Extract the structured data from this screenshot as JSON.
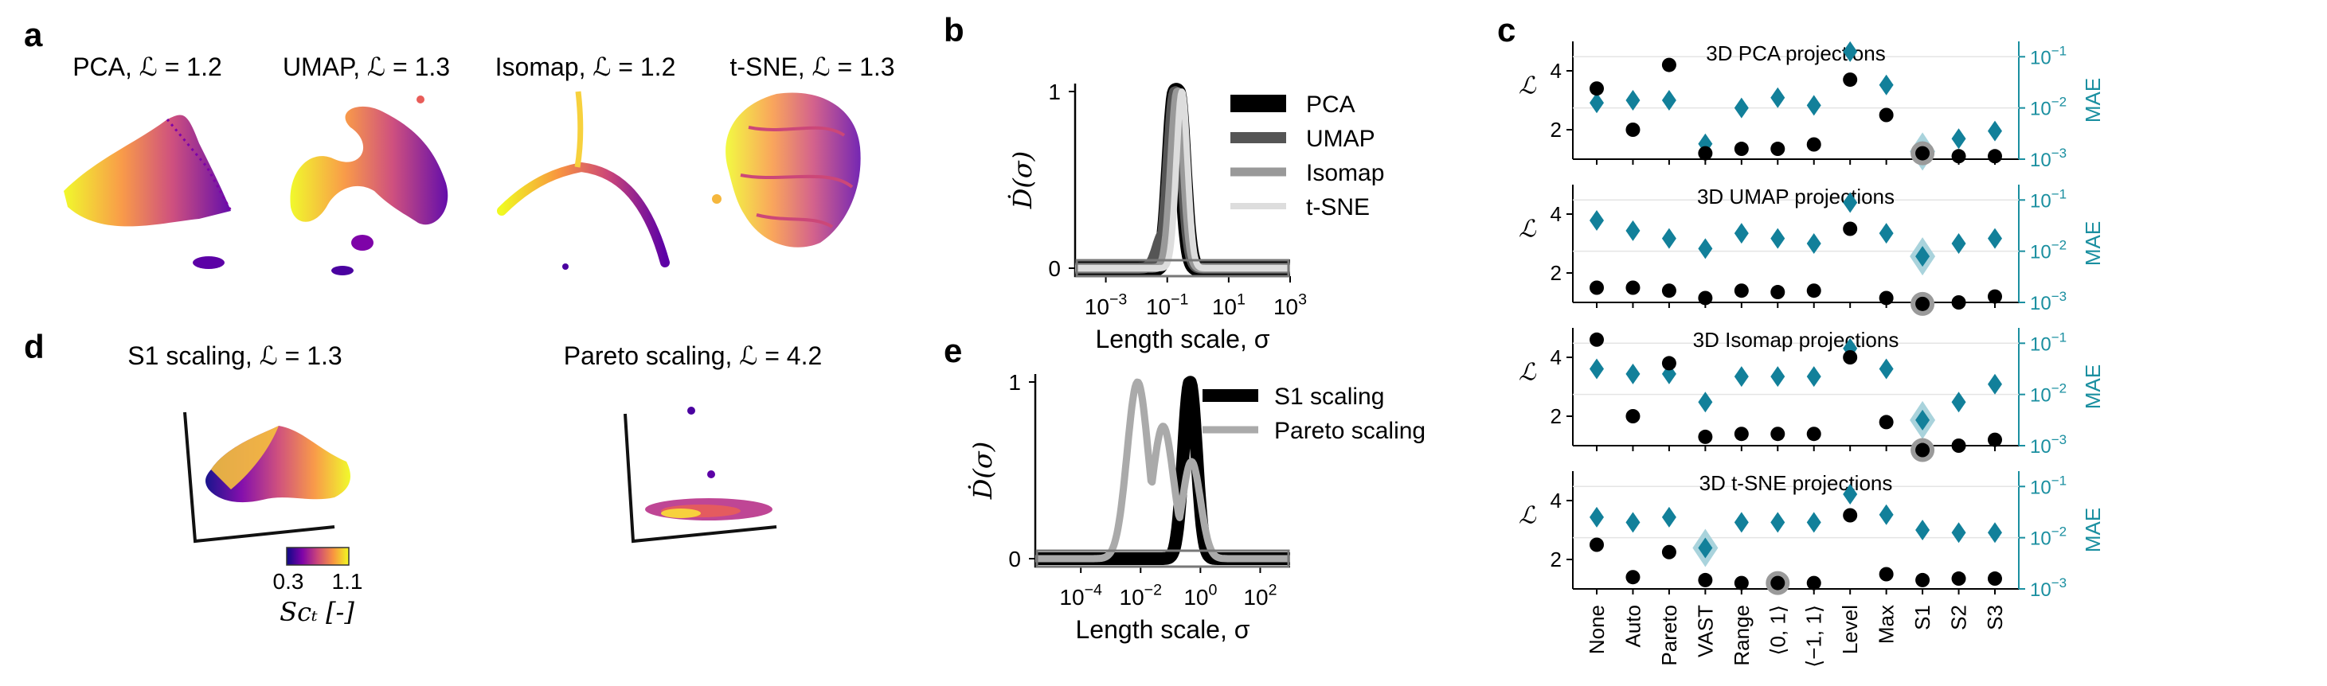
{
  "panels": {
    "a": {
      "label": "a",
      "titles": [
        "PCA, ℒ = 1.2",
        "UMAP, ℒ = 1.3",
        "Isomap, ℒ = 1.2",
        "t-SNE, ℒ = 1.3"
      ]
    },
    "b": {
      "label": "b"
    },
    "c": {
      "label": "c"
    },
    "d": {
      "label": "d",
      "titles": [
        "S1 scaling, ℒ = 1.3",
        "Pareto scaling, ℒ = 4.2"
      ],
      "colorbar": {
        "min": "0.3",
        "max": "1.1",
        "label": "Scₜ [-]"
      }
    },
    "e": {
      "label": "e"
    }
  },
  "chart_data": [
    {
      "id": "b",
      "type": "line",
      "ylabel": "Ḋ(σ)",
      "xlabel": "Length scale, σ",
      "xscale": "log",
      "xlim": [
        0.0001,
        1000
      ],
      "ylim": [
        0,
        1
      ],
      "yticks": [
        "0",
        "1"
      ],
      "xticks": [
        {
          "v": 0.001,
          "base": "10",
          "exp": "−3"
        },
        {
          "v": 0.1,
          "base": "10",
          "exp": "−1"
        },
        {
          "v": 10,
          "base": "10",
          "exp": "1"
        },
        {
          "v": 1000,
          "base": "10",
          "exp": "3"
        }
      ],
      "legend_position": "top-right",
      "series": [
        {
          "name": "PCA",
          "color": "#000000",
          "width": 22,
          "peak": 0.2,
          "sigma": 0.2
        },
        {
          "name": "UMAP",
          "color": "#555555",
          "width": 14,
          "peak": 0.18,
          "sigma": 0.22
        },
        {
          "name": "Isomap",
          "color": "#999999",
          "width": 11,
          "peak": 0.22,
          "sigma": 0.2
        },
        {
          "name": "t-SNE",
          "color": "#dddddd",
          "width": 8,
          "peak": 0.3,
          "sigma": 0.18
        }
      ]
    },
    {
      "id": "e",
      "type": "line",
      "ylabel": "Ḋ(σ)",
      "xlabel": "Length scale, σ",
      "xscale": "log",
      "xlim": [
        3e-06,
        1000
      ],
      "ylim": [
        0,
        1
      ],
      "yticks": [
        "0",
        "1"
      ],
      "xticks": [
        {
          "v": 0.0001,
          "base": "10",
          "exp": "−4"
        },
        {
          "v": 0.01,
          "base": "10",
          "exp": "−2"
        },
        {
          "v": 1,
          "base": "10",
          "exp": "0"
        },
        {
          "v": 100,
          "base": "10",
          "exp": "2"
        }
      ],
      "legend_position": "top-right",
      "series": [
        {
          "name": "S1 scaling",
          "color": "#000000",
          "width": 16
        },
        {
          "name": "Pareto scaling",
          "color": "#aaaaaa",
          "width": 9
        }
      ]
    },
    {
      "id": "c",
      "type": "scatter",
      "categories": [
        "None",
        "Auto",
        "Pareto",
        "VAST",
        "Range",
        "⟨0, 1⟩",
        "⟨−1, 1⟩",
        "Level",
        "Max",
        "S1",
        "S2",
        "S3"
      ],
      "ylabel_left": "ℒ",
      "ylabel_right": "MAE",
      "ylim_left": [
        1,
        5
      ],
      "yticks_left": [
        "2",
        "4"
      ],
      "ylim_right_log": [
        -3,
        -0.7
      ],
      "yticks_right": [
        {
          "v": -1,
          "base": "10",
          "exp": "−1"
        },
        {
          "v": -2,
          "base": "10",
          "exp": "−2"
        },
        {
          "v": -3,
          "base": "10",
          "exp": "−3"
        }
      ],
      "subplots": [
        {
          "title": "3D PCA projections",
          "L": [
            3.4,
            2.0,
            4.2,
            1.2,
            1.35,
            1.35,
            1.5,
            3.7,
            2.5,
            1.2,
            1.1,
            1.1
          ],
          "MAE": [
            -1.9,
            -1.85,
            -1.85,
            -2.7,
            -2.0,
            -1.8,
            -1.95,
            -0.9,
            -1.55,
            -2.85,
            -2.6,
            -2.45
          ],
          "highlight": 9
        },
        {
          "title": "3D UMAP projections",
          "L": [
            1.5,
            1.5,
            1.4,
            1.15,
            1.4,
            1.35,
            1.4,
            3.5,
            1.15,
            0.95,
            1.0,
            1.2
          ],
          "MAE": [
            -1.4,
            -1.6,
            -1.75,
            -1.95,
            -1.65,
            -1.75,
            -1.85,
            -1.05,
            -1.65,
            -2.1,
            -1.85,
            -1.75
          ],
          "highlight": 9
        },
        {
          "title": "3D Isomap projections",
          "L": [
            4.6,
            2.0,
            3.8,
            1.3,
            1.4,
            1.4,
            1.4,
            4.0,
            1.8,
            0.85,
            1.0,
            1.2
          ],
          "MAE": [
            -1.5,
            -1.6,
            -1.6,
            -2.15,
            -1.65,
            -1.65,
            -1.65,
            -1.1,
            -1.5,
            -2.5,
            -2.15,
            -1.8
          ],
          "highlight": 9
        },
        {
          "title": "3D t-SNE projections",
          "L": [
            2.5,
            1.4,
            2.25,
            1.3,
            1.2,
            1.2,
            1.2,
            3.5,
            1.5,
            1.3,
            1.35,
            1.35
          ],
          "MAE": [
            -1.6,
            -1.7,
            -1.6,
            -2.2,
            -1.7,
            -1.7,
            -1.7,
            -1.15,
            -1.55,
            -1.85,
            -1.9,
            -1.9
          ],
          "highlight_L": 5,
          "highlight_MAE": 3
        }
      ]
    }
  ]
}
